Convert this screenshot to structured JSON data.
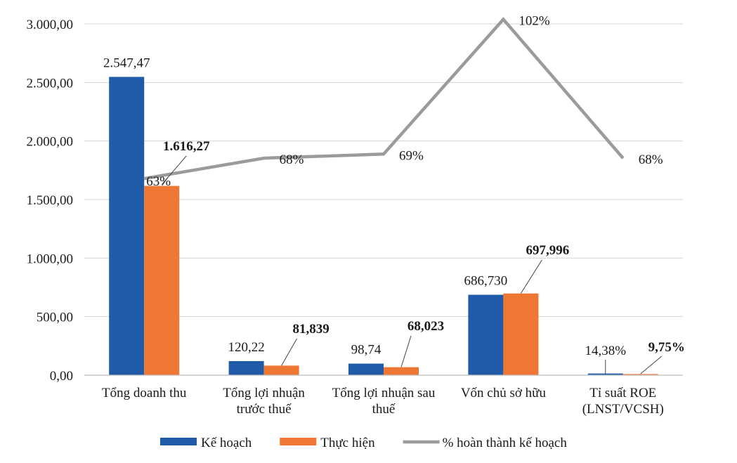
{
  "chart_data": {
    "type": "bar",
    "categories": [
      [
        "Tổng doanh thu"
      ],
      [
        "Tổng lợi nhuận",
        "trước thuế"
      ],
      [
        "Tổng lợi nhuận sau",
        "thuế"
      ],
      [
        "Vốn chủ sở hữu"
      ],
      [
        "Tỉ suất ROE",
        "(LNST/VCSH)"
      ]
    ],
    "ylim": [
      0,
      3000
    ],
    "yticks": [
      0,
      500,
      1000,
      1500,
      2000,
      2500,
      3000
    ],
    "ytick_labels": [
      "0,00",
      "500,00",
      "1.000,00",
      "1.500,00",
      "2.000,00",
      "2.500,00",
      "3.000,00"
    ],
    "grid": true,
    "legend_position": "bottom",
    "series": [
      {
        "name": "Kế hoạch",
        "kind": "bar",
        "color": "#1f5ba8",
        "values": [
          2547.47,
          120.22,
          98.74,
          686.73,
          14.38
        ],
        "labels": [
          "2.547,47",
          "120,22",
          "98,74",
          "686,730",
          "14,38%"
        ],
        "label_bold": false
      },
      {
        "name": "Thực hiện",
        "kind": "bar",
        "color": "#ee7733",
        "values": [
          1616.27,
          81.839,
          68.023,
          697.996,
          9.75
        ],
        "labels": [
          "1.616,27",
          "81,839",
          "68,023",
          "697,996",
          "9,75%"
        ],
        "label_bold": true
      },
      {
        "name": "% hoàn thành kế hoạch",
        "kind": "line",
        "color": "#9b9b9b",
        "values": [
          63,
          68,
          69,
          102,
          68
        ],
        "labels": [
          "63%",
          "68%",
          "69%",
          "102%",
          "68%"
        ]
      }
    ]
  }
}
